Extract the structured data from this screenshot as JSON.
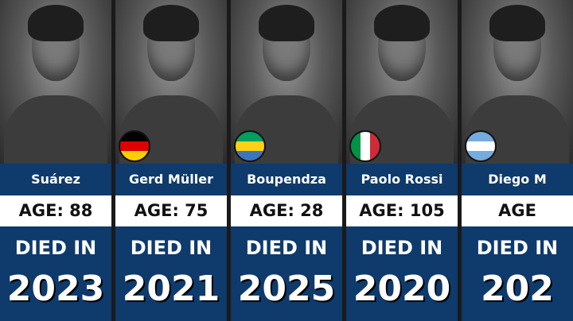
{
  "colors": {
    "panel": "#0e3a6c",
    "age_bar": "#ffffff"
  },
  "died_label": "DIED IN",
  "cards": [
    {
      "name": "Suárez",
      "age": "AGE: 88",
      "year": "2023",
      "flag": "none"
    },
    {
      "name": "Gerd Müller",
      "age": "AGE: 75",
      "year": "2021",
      "flag": "germany-flag-icon",
      "flag_colors": [
        "#000000",
        "#dd0000",
        "#ffce00"
      ],
      "flag_dir": "h"
    },
    {
      "name": "Boupendza",
      "age": "AGE: 28",
      "year": "2025",
      "flag": "gabon-flag-icon",
      "flag_colors": [
        "#009e60",
        "#fcd116",
        "#3a75c4"
      ],
      "flag_dir": "h"
    },
    {
      "name": "Paolo Rossi",
      "age": "AGE: 105",
      "year": "2020",
      "flag": "italy-flag-icon",
      "flag_colors": [
        "#009246",
        "#ffffff",
        "#ce2b37"
      ],
      "flag_dir": "v"
    },
    {
      "name": "Diego M",
      "age": "AGE",
      "year": "202",
      "flag": "argentina-flag-icon",
      "flag_colors": [
        "#74acdf",
        "#ffffff",
        "#74acdf"
      ],
      "flag_dir": "h"
    }
  ]
}
